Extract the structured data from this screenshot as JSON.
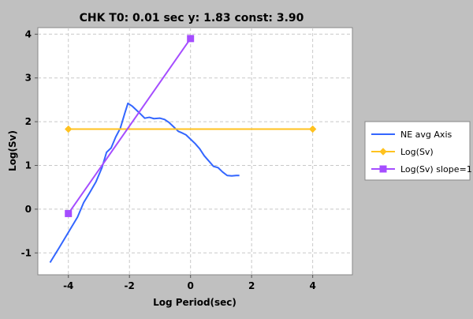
{
  "chart_data": {
    "type": "line",
    "title": "CHK T0: 0.01 sec  y: 1.83 const: 3.90",
    "xlabel": "Log Period(sec)",
    "ylabel": "Log(Sv)",
    "xlim": [
      -5.0,
      5.3
    ],
    "ylim": [
      -1.5,
      4.15
    ],
    "xticks": [
      -4,
      -2,
      0,
      2,
      4
    ],
    "yticks": [
      -1,
      0,
      1,
      2,
      3,
      4
    ],
    "grid": true,
    "legend_position": "right",
    "series": [
      {
        "name": "NE avg Axis",
        "color": "#3366ff",
        "marker": "none",
        "points": [
          [
            -4.6,
            -1.22
          ],
          [
            -4.3,
            -0.88
          ],
          [
            -4.0,
            -0.53
          ],
          [
            -3.7,
            -0.18
          ],
          [
            -3.5,
            0.15
          ],
          [
            -3.3,
            0.38
          ],
          [
            -3.1,
            0.62
          ],
          [
            -2.9,
            0.95
          ],
          [
            -2.75,
            1.3
          ],
          [
            -2.6,
            1.4
          ],
          [
            -2.45,
            1.65
          ],
          [
            -2.3,
            1.85
          ],
          [
            -2.15,
            2.2
          ],
          [
            -2.05,
            2.42
          ],
          [
            -1.9,
            2.35
          ],
          [
            -1.75,
            2.25
          ],
          [
            -1.6,
            2.15
          ],
          [
            -1.5,
            2.08
          ],
          [
            -1.35,
            2.1
          ],
          [
            -1.2,
            2.07
          ],
          [
            -1.0,
            2.08
          ],
          [
            -0.85,
            2.05
          ],
          [
            -0.7,
            1.98
          ],
          [
            -0.55,
            1.88
          ],
          [
            -0.4,
            1.78
          ],
          [
            -0.3,
            1.75
          ],
          [
            -0.15,
            1.7
          ],
          [
            0.0,
            1.6
          ],
          [
            0.15,
            1.5
          ],
          [
            0.3,
            1.38
          ],
          [
            0.45,
            1.22
          ],
          [
            0.6,
            1.1
          ],
          [
            0.75,
            0.98
          ],
          [
            0.9,
            0.95
          ],
          [
            1.05,
            0.85
          ],
          [
            1.2,
            0.77
          ],
          [
            1.35,
            0.76
          ],
          [
            1.5,
            0.77
          ],
          [
            1.6,
            0.77
          ]
        ]
      },
      {
        "name": "Log(Sv)",
        "color": "#ffc21f",
        "marker": "diamond",
        "points": [
          [
            -4.0,
            1.83
          ],
          [
            4.0,
            1.83
          ]
        ]
      },
      {
        "name": "Log(Sv) slope=1",
        "color": "#a54dff",
        "marker": "square",
        "points": [
          [
            -4.0,
            -0.1
          ],
          [
            0.0,
            3.9
          ]
        ]
      }
    ]
  }
}
